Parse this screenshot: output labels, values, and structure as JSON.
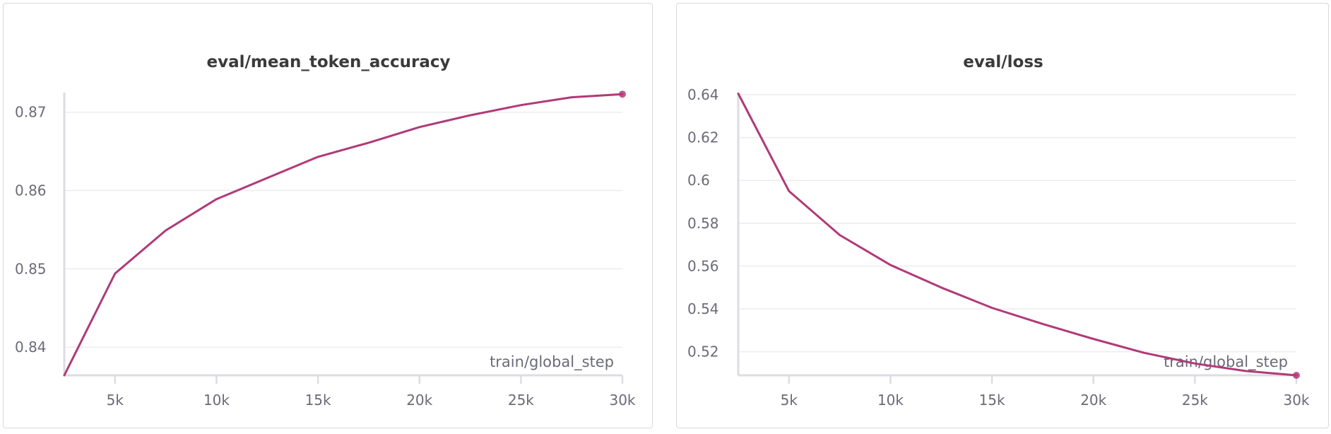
{
  "accent_color": "#b03a78",
  "chart_data": [
    {
      "type": "line",
      "title": "eval/mean_token_accuracy",
      "xlabel": "train/global_step",
      "ylabel": "",
      "xlim": [
        2500,
        30000
      ],
      "ylim": [
        0.8364,
        0.8725
      ],
      "xticks": [
        5000,
        10000,
        15000,
        20000,
        25000,
        30000
      ],
      "xtick_labels": [
        "5k",
        "10k",
        "15k",
        "20k",
        "25k",
        "30k"
      ],
      "yticks": [
        0.84,
        0.85,
        0.86,
        0.87
      ],
      "ytick_labels": [
        "0.84",
        "0.85",
        "0.86",
        "0.87"
      ],
      "grid": true,
      "series": [
        {
          "color": "#b03a78",
          "x": [
            2500,
            5000,
            7500,
            10000,
            12500,
            15000,
            17500,
            20000,
            22500,
            25000,
            27500,
            30000
          ],
          "y": [
            0.8364,
            0.8494,
            0.8549,
            0.8589,
            0.8616,
            0.8643,
            0.8661,
            0.8681,
            0.8696,
            0.8709,
            0.8719,
            0.8723
          ]
        }
      ]
    },
    {
      "type": "line",
      "title": "eval/loss",
      "xlabel": "train/global_step",
      "ylabel": "",
      "xlim": [
        2500,
        30000
      ],
      "ylim": [
        0.509,
        0.641
      ],
      "xticks": [
        5000,
        10000,
        15000,
        20000,
        25000,
        30000
      ],
      "xtick_labels": [
        "5k",
        "10k",
        "15k",
        "20k",
        "25k",
        "30k"
      ],
      "yticks": [
        0.52,
        0.54,
        0.56,
        0.58,
        0.6,
        0.62,
        0.64
      ],
      "ytick_labels": [
        "0.52",
        "0.54",
        "0.56",
        "0.58",
        "0.6",
        "0.62",
        "0.64"
      ],
      "grid": true,
      "series": [
        {
          "color": "#b03a78",
          "x": [
            2500,
            5000,
            7500,
            10000,
            12500,
            15000,
            17500,
            20000,
            22500,
            25000,
            27500,
            30000
          ],
          "y": [
            0.6405,
            0.595,
            0.5745,
            0.5605,
            0.55,
            0.5405,
            0.533,
            0.526,
            0.5195,
            0.5145,
            0.511,
            0.509
          ]
        }
      ]
    }
  ]
}
